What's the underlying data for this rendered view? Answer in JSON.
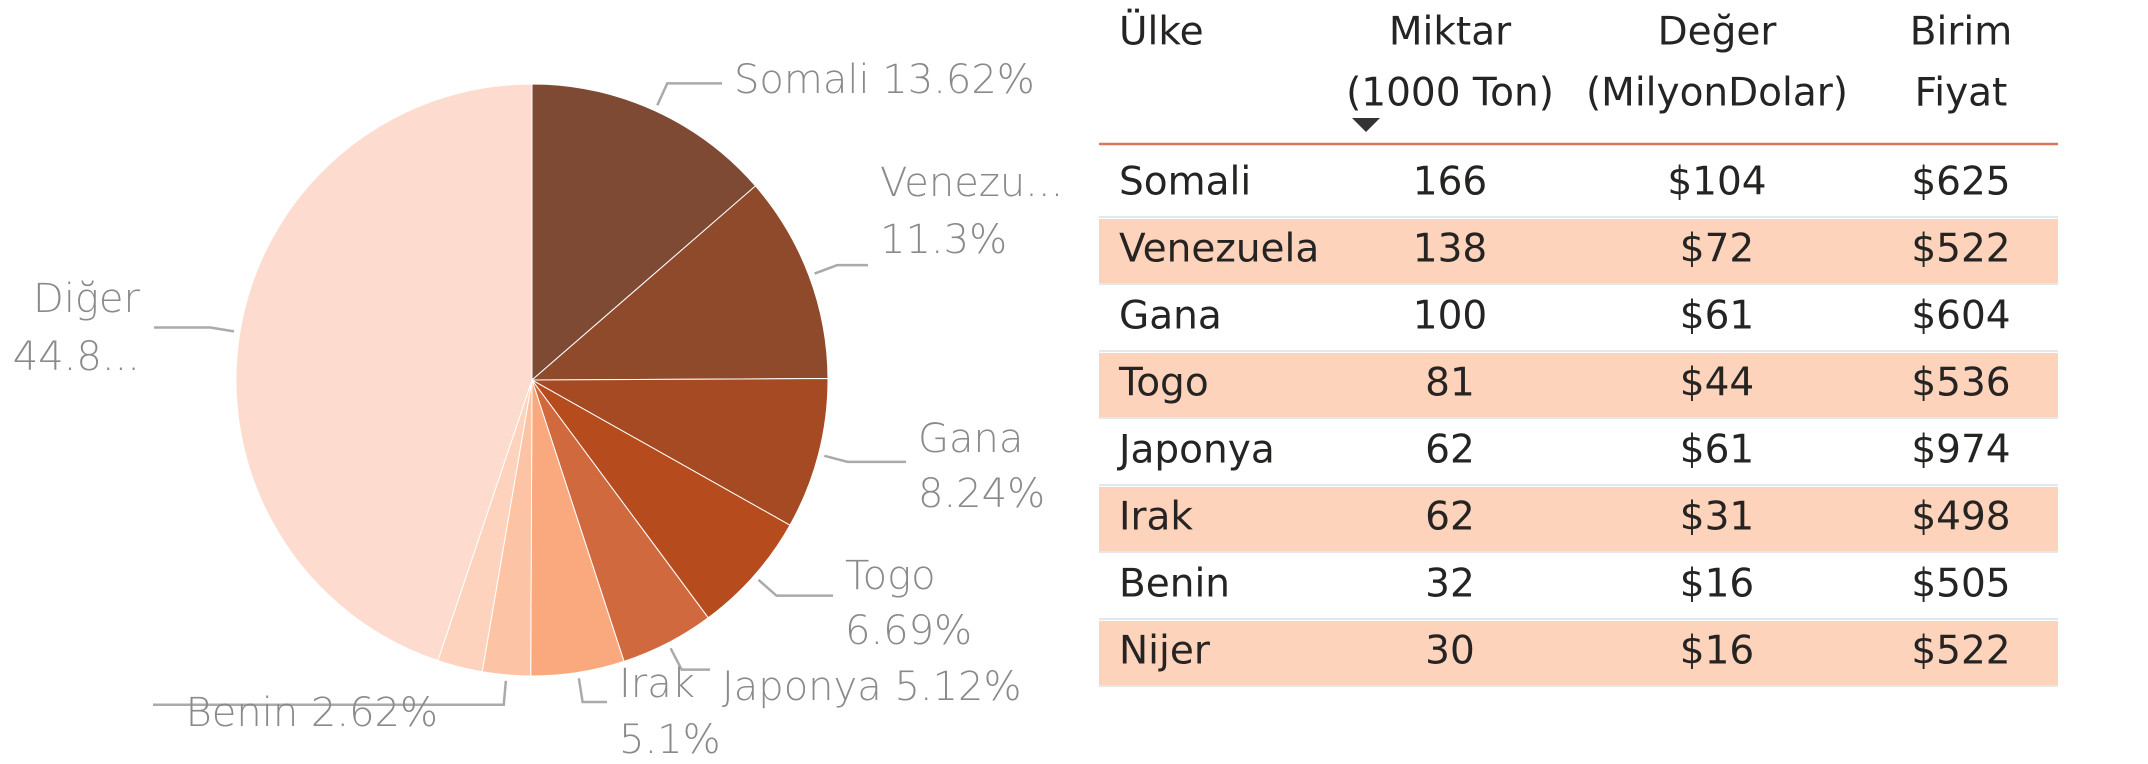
{
  "chart_data": {
    "type": "pie",
    "categories": [
      "Somali",
      "Venezu...",
      "Gana",
      "Togo",
      "Japonya",
      "Irak",
      "Benin",
      null,
      "Diğer"
    ],
    "values": [
      13.62,
      11.3,
      8.24,
      6.69,
      5.12,
      5.1,
      2.62,
      2.46,
      44.85
    ],
    "value_labels": [
      "13.62%",
      "11.3%",
      "8.24%",
      "6.69%",
      "5.12%",
      "5.1%",
      "2.62%",
      null,
      "44.8..."
    ],
    "colors": [
      "#7f4a33",
      "#8f4a2c",
      "#a54a23",
      "#b64b1e",
      "#d0693d",
      "#f9a97d",
      "#fcc3a5",
      "#fdd3bd",
      "#fddccf"
    ]
  },
  "table": {
    "header": [
      [
        "Ülke"
      ],
      [
        "Miktar",
        "(1000 Ton)"
      ],
      [
        "Değer",
        "(MilyonDolar)"
      ],
      [
        "Birim",
        "Fiyat"
      ]
    ],
    "rows": [
      [
        "Somali",
        "166",
        "$104",
        "$625"
      ],
      [
        "Venezuela",
        "138",
        "$72",
        "$522"
      ],
      [
        "Gana",
        "100",
        "$61",
        "$604"
      ],
      [
        "Togo",
        "81",
        "$44",
        "$536"
      ],
      [
        "Japonya",
        "62",
        "$61",
        "$974"
      ],
      [
        "Irak",
        "62",
        "$31",
        "$498"
      ],
      [
        "Benin",
        "32",
        "$16",
        "$505"
      ],
      [
        "Nijer",
        "30",
        "$16",
        "$522"
      ]
    ],
    "band_color": "#fdd3bb"
  }
}
